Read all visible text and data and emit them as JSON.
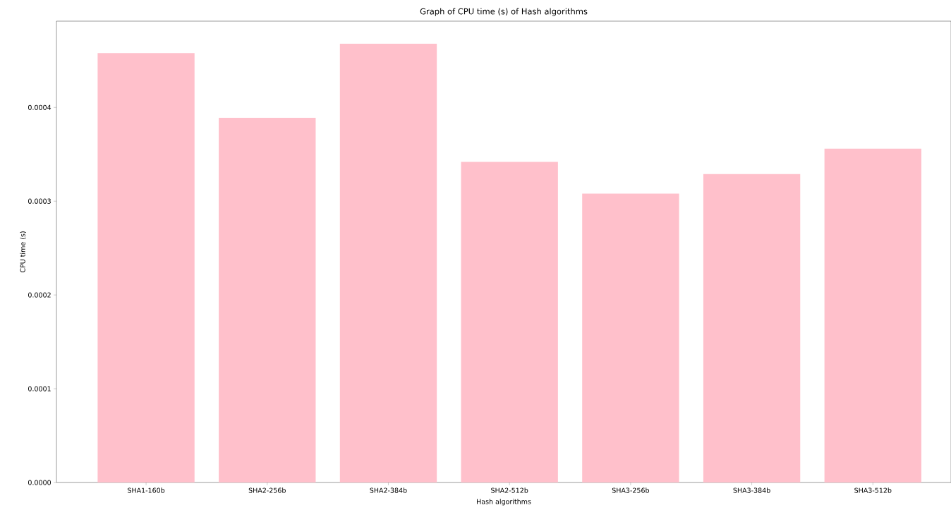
{
  "chart_data": {
    "type": "bar",
    "title": "Graph of CPU time (s) of Hash algorithms",
    "xlabel": "Hash algorithms",
    "ylabel": "CPU time (s)",
    "categories": [
      "SHA1-160b",
      "SHA2-256b",
      "SHA2-384b",
      "SHA2-512b",
      "SHA3-256b",
      "SHA3-384b",
      "SHA3-512b"
    ],
    "values": [
      0.000458,
      0.000389,
      0.000468,
      0.000342,
      0.000308,
      0.000329,
      0.000356
    ],
    "color": "#ffc0cb",
    "ylim": [
      0,
      0.000492
    ],
    "yticks": [
      {
        "value": 0,
        "label": "0.0000"
      },
      {
        "value": 0.0001,
        "label": "0.0001"
      },
      {
        "value": 0.0002,
        "label": "0.0002"
      },
      {
        "value": 0.0003,
        "label": "0.0003"
      },
      {
        "value": 0.0004,
        "label": "0.0004"
      }
    ],
    "grid": false
  }
}
